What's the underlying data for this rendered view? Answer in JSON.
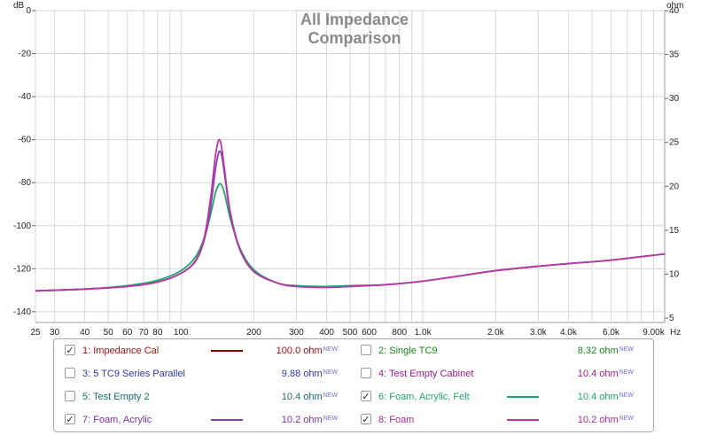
{
  "chart_data": {
    "type": "line",
    "title_lines": [
      "All Impedance",
      "Comparison"
    ],
    "left_axis": {
      "unit": "dB",
      "ticks": [
        "0",
        "-20",
        "-40",
        "-60",
        "-80",
        "-100",
        "-120",
        "-140"
      ],
      "range": [
        -145,
        0
      ]
    },
    "right_axis": {
      "unit": "ohm",
      "ticks": [
        "40",
        "35",
        "30",
        "25",
        "20",
        "15",
        "10",
        "5"
      ],
      "range": [
        4.5,
        40
      ]
    },
    "x_axis": {
      "unit": "Hz",
      "scale": "log",
      "range": [
        25,
        10000
      ],
      "ticks": [
        {
          "value": 25,
          "label": "25"
        },
        {
          "value": 30,
          "label": "30"
        },
        {
          "value": 40,
          "label": "40"
        },
        {
          "value": 50,
          "label": "50"
        },
        {
          "value": 60,
          "label": "60"
        },
        {
          "value": 70,
          "label": "70"
        },
        {
          "value": 80,
          "label": "80"
        },
        {
          "value": 100,
          "label": "100"
        },
        {
          "value": 200,
          "label": "200"
        },
        {
          "value": 300,
          "label": "300"
        },
        {
          "value": 400,
          "label": "400"
        },
        {
          "value": 500,
          "label": "500"
        },
        {
          "value": 600,
          "label": "600"
        },
        {
          "value": 800,
          "label": "800"
        },
        {
          "value": 1000,
          "label": "1.0k"
        },
        {
          "value": 2000,
          "label": "2.0k"
        },
        {
          "value": 3000,
          "label": "3.0k"
        },
        {
          "value": 4000,
          "label": "4.0k"
        },
        {
          "value": 6000,
          "label": "6.0k"
        },
        {
          "value": 9000,
          "label": "9.00k"
        }
      ],
      "minor": [
        90,
        700,
        900,
        5000,
        7000,
        8000
      ]
    },
    "series": [
      {
        "name": "Foam, Acrylic, Felt",
        "color": "#1aa86a",
        "x": [
          25,
          40,
          60,
          80,
          100,
          115,
          125,
          133,
          138,
          142,
          145,
          148,
          152,
          160,
          175,
          200,
          250,
          300,
          400,
          500,
          700,
          1000,
          1500,
          2000,
          3000,
          4000,
          6000,
          10000
        ],
        "y": [
          8.1,
          8.3,
          8.7,
          9.3,
          10.4,
          12.0,
          14.2,
          17.0,
          19.0,
          20.0,
          20.3,
          20.0,
          19.0,
          16.3,
          13.0,
          10.5,
          9.0,
          8.7,
          8.6,
          8.7,
          8.8,
          9.2,
          9.9,
          10.4,
          10.9,
          11.2,
          11.6,
          12.3
        ]
      },
      {
        "name": "Foam, Acrylic",
        "color": "#8a3fb5",
        "x": [
          25,
          40,
          60,
          80,
          100,
          115,
          125,
          133,
          138,
          142,
          145,
          148,
          152,
          160,
          175,
          200,
          250,
          300,
          400,
          500,
          700,
          1000,
          1500,
          2000,
          3000,
          4000,
          6000,
          10000
        ],
        "y": [
          8.1,
          8.3,
          8.6,
          9.1,
          10.1,
          11.5,
          14.0,
          18.0,
          21.5,
          23.5,
          24.0,
          23.2,
          21.0,
          16.8,
          12.8,
          10.3,
          9.0,
          8.6,
          8.5,
          8.6,
          8.8,
          9.2,
          9.9,
          10.4,
          10.9,
          11.2,
          11.6,
          12.3
        ]
      },
      {
        "name": "Foam",
        "color": "#b83aa0",
        "x": [
          25,
          40,
          60,
          80,
          100,
          115,
          125,
          133,
          138,
          142,
          145,
          148,
          152,
          160,
          175,
          200,
          250,
          300,
          400,
          500,
          700,
          1000,
          1500,
          2000,
          3000,
          4000,
          6000,
          10000
        ],
        "y": [
          8.1,
          8.3,
          8.6,
          9.1,
          10.1,
          11.6,
          14.3,
          19.0,
          23.0,
          25.0,
          25.2,
          24.0,
          21.5,
          17.0,
          12.9,
          10.3,
          9.0,
          8.6,
          8.5,
          8.6,
          8.8,
          9.2,
          9.9,
          10.4,
          10.9,
          11.2,
          11.6,
          12.3
        ]
      }
    ]
  },
  "legend": {
    "entries": [
      {
        "label": "1: Impedance Cal",
        "checked": true,
        "label_color": "#a01010",
        "swatch": "#8b0000",
        "value": "100.0 ohm",
        "value_color": "#a01010",
        "new": "NEW"
      },
      {
        "label": "2: Single TC9",
        "checked": false,
        "label_color": "#1a8a1a",
        "swatch": null,
        "value": "8.32 ohm",
        "value_color": "#1a8a1a",
        "new": "NEW"
      },
      {
        "label": "3: 5 TC9 Series Parallel",
        "checked": false,
        "label_color": "#2a3aa0",
        "swatch": null,
        "value": "9.88 ohm",
        "value_color": "#2a3aa0",
        "new": "NEW"
      },
      {
        "label": "4: Test Empty Cabinet",
        "checked": false,
        "label_color": "#a01a8a",
        "swatch": null,
        "value": "10.4 ohm",
        "value_color": "#a01a8a",
        "new": "NEW"
      },
      {
        "label": "5: Test Empty 2",
        "checked": false,
        "label_color": "#1a6a6a",
        "swatch": null,
        "value": "10.4 ohm",
        "value_color": "#1a6a6a",
        "new": "NEW"
      },
      {
        "label": "6: Foam, Acrylic, Felt",
        "checked": true,
        "label_color": "#1aa86a",
        "swatch": "#1aa86a",
        "value": "10.4 ohm",
        "value_color": "#1aa86a",
        "new": "NEW"
      },
      {
        "label": "7: Foam, Acrylic",
        "checked": true,
        "label_color": "#7a2fa5",
        "swatch": "#8a3fb5",
        "value": "10.2 ohm",
        "value_color": "#7a2fa5",
        "new": "NEW"
      },
      {
        "label": "8: Foam",
        "checked": true,
        "label_color": "#a82a90",
        "swatch": "#b83aa0",
        "value": "10.2 ohm",
        "value_color": "#a82a90",
        "new": "NEW"
      }
    ]
  }
}
